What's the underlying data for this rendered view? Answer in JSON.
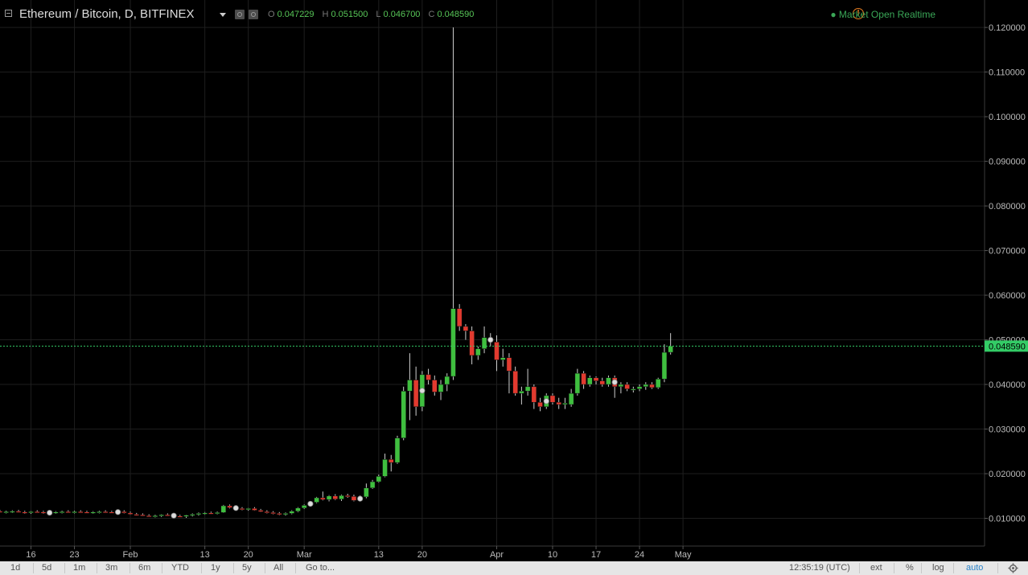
{
  "header": {
    "symbol": "Ethereum / Bitcoin, D, BITFINEX",
    "open_label": "O",
    "open": "0.047229",
    "high_label": "H",
    "high": "0.051500",
    "low_label": "L",
    "low": "0.046700",
    "close_label": "C",
    "close": "0.048590",
    "market_status": "Market Open",
    "realtime": "Realtime"
  },
  "timeframes": [
    "1d",
    "5d",
    "1m",
    "3m",
    "6m",
    "YTD",
    "1y",
    "5y",
    "All"
  ],
  "goto": "Go to...",
  "clock": "12:35:19 (UTC)",
  "options": [
    "ext",
    "%",
    "log",
    "auto"
  ],
  "colors": {
    "up": "#3fbf3f",
    "down": "#e23a2f",
    "grid": "#1e1e1e",
    "last_price": "#33cc66"
  },
  "chart_data": {
    "type": "candlestick",
    "x_tick_labels": [
      "16",
      "23",
      "Feb",
      "13",
      "20",
      "Mar",
      "13",
      "20",
      "Apr",
      "10",
      "17",
      "24",
      "May"
    ],
    "y_tick_labels": [
      "0.120000",
      "0.110000",
      "0.100000",
      "0.090000",
      "0.080000",
      "0.070000",
      "0.060000",
      "0.050000",
      "0.040000",
      "0.030000",
      "0.020000",
      "0.010000"
    ],
    "y_ticks": [
      0.12,
      0.11,
      0.1,
      0.09,
      0.08,
      0.07,
      0.06,
      0.05,
      0.04,
      0.03,
      0.02,
      0.01
    ],
    "ylim": [
      0.0,
      0.12
    ],
    "last_price": 0.04859,
    "last_price_label": "0.048590",
    "candles": [
      {
        "date": "2017-01-10",
        "o": 0.0115,
        "h": 0.0118,
        "l": 0.0112,
        "c": 0.0116
      },
      {
        "date": "2017-01-11",
        "o": 0.0116,
        "h": 0.0119,
        "l": 0.0113,
        "c": 0.0114
      },
      {
        "date": "2017-01-12",
        "o": 0.0114,
        "h": 0.0117,
        "l": 0.0111,
        "c": 0.0115
      },
      {
        "date": "2017-01-13",
        "o": 0.0115,
        "h": 0.0118,
        "l": 0.0112,
        "c": 0.0116
      },
      {
        "date": "2017-01-14",
        "o": 0.0116,
        "h": 0.0119,
        "l": 0.0113,
        "c": 0.0114
      },
      {
        "date": "2017-01-15",
        "o": 0.0114,
        "h": 0.0117,
        "l": 0.011,
        "c": 0.0113
      },
      {
        "date": "2017-01-16",
        "o": 0.0113,
        "h": 0.0116,
        "l": 0.011,
        "c": 0.0115
      },
      {
        "date": "2017-01-17",
        "o": 0.0115,
        "h": 0.0118,
        "l": 0.0112,
        "c": 0.0114
      },
      {
        "date": "2017-01-18",
        "o": 0.0114,
        "h": 0.0117,
        "l": 0.011,
        "c": 0.0112
      },
      {
        "date": "2017-01-19",
        "o": 0.0112,
        "h": 0.0115,
        "l": 0.0109,
        "c": 0.0113
      },
      {
        "date": "2017-01-20",
        "o": 0.0113,
        "h": 0.0116,
        "l": 0.011,
        "c": 0.0114
      },
      {
        "date": "2017-01-21",
        "o": 0.0114,
        "h": 0.0117,
        "l": 0.0111,
        "c": 0.0115
      },
      {
        "date": "2017-01-22",
        "o": 0.0115,
        "h": 0.0118,
        "l": 0.0112,
        "c": 0.0114
      },
      {
        "date": "2017-01-23",
        "o": 0.0114,
        "h": 0.0117,
        "l": 0.0111,
        "c": 0.0115
      },
      {
        "date": "2017-01-24",
        "o": 0.0115,
        "h": 0.0118,
        "l": 0.0112,
        "c": 0.0114
      },
      {
        "date": "2017-01-25",
        "o": 0.0114,
        "h": 0.0117,
        "l": 0.0111,
        "c": 0.0113
      },
      {
        "date": "2017-01-26",
        "o": 0.0113,
        "h": 0.0116,
        "l": 0.011,
        "c": 0.0114
      },
      {
        "date": "2017-01-27",
        "o": 0.0114,
        "h": 0.0117,
        "l": 0.0111,
        "c": 0.0115
      },
      {
        "date": "2017-01-28",
        "o": 0.0115,
        "h": 0.0118,
        "l": 0.0112,
        "c": 0.0114
      },
      {
        "date": "2017-01-29",
        "o": 0.0114,
        "h": 0.0117,
        "l": 0.0111,
        "c": 0.0113
      },
      {
        "date": "2017-01-30",
        "o": 0.0113,
        "h": 0.0116,
        "l": 0.011,
        "c": 0.0115
      },
      {
        "date": "2017-01-31",
        "o": 0.0115,
        "h": 0.0118,
        "l": 0.0111,
        "c": 0.0112
      },
      {
        "date": "2017-02-01",
        "o": 0.0112,
        "h": 0.0115,
        "l": 0.0108,
        "c": 0.0109
      },
      {
        "date": "2017-02-02",
        "o": 0.0109,
        "h": 0.0112,
        "l": 0.0106,
        "c": 0.0108
      },
      {
        "date": "2017-02-03",
        "o": 0.0108,
        "h": 0.0111,
        "l": 0.0105,
        "c": 0.0106
      },
      {
        "date": "2017-02-04",
        "o": 0.0106,
        "h": 0.0109,
        "l": 0.0103,
        "c": 0.0105
      },
      {
        "date": "2017-02-05",
        "o": 0.0105,
        "h": 0.0108,
        "l": 0.0102,
        "c": 0.0106
      },
      {
        "date": "2017-02-06",
        "o": 0.0106,
        "h": 0.0109,
        "l": 0.0103,
        "c": 0.0108
      },
      {
        "date": "2017-02-07",
        "o": 0.0108,
        "h": 0.0111,
        "l": 0.0105,
        "c": 0.0107
      },
      {
        "date": "2017-02-08",
        "o": 0.0107,
        "h": 0.011,
        "l": 0.0104,
        "c": 0.0105
      },
      {
        "date": "2017-02-09",
        "o": 0.0105,
        "h": 0.0108,
        "l": 0.0102,
        "c": 0.0104
      },
      {
        "date": "2017-02-10",
        "o": 0.0104,
        "h": 0.0108,
        "l": 0.0101,
        "c": 0.0107
      },
      {
        "date": "2017-02-11",
        "o": 0.0107,
        "h": 0.0111,
        "l": 0.0104,
        "c": 0.0109
      },
      {
        "date": "2017-02-12",
        "o": 0.0109,
        "h": 0.0113,
        "l": 0.0106,
        "c": 0.0111
      },
      {
        "date": "2017-02-13",
        "o": 0.0111,
        "h": 0.0114,
        "l": 0.0108,
        "c": 0.0112
      },
      {
        "date": "2017-02-14",
        "o": 0.0112,
        "h": 0.0115,
        "l": 0.0109,
        "c": 0.0111
      },
      {
        "date": "2017-02-15",
        "o": 0.0111,
        "h": 0.0115,
        "l": 0.0109,
        "c": 0.0113
      },
      {
        "date": "2017-02-16",
        "o": 0.0113,
        "h": 0.013,
        "l": 0.0112,
        "c": 0.0128
      },
      {
        "date": "2017-02-17",
        "o": 0.0128,
        "h": 0.0131,
        "l": 0.0122,
        "c": 0.0124
      },
      {
        "date": "2017-02-18",
        "o": 0.0124,
        "h": 0.0127,
        "l": 0.012,
        "c": 0.0122
      },
      {
        "date": "2017-02-19",
        "o": 0.0122,
        "h": 0.0125,
        "l": 0.0118,
        "c": 0.012
      },
      {
        "date": "2017-02-20",
        "o": 0.012,
        "h": 0.0123,
        "l": 0.0117,
        "c": 0.0122
      },
      {
        "date": "2017-02-21",
        "o": 0.0122,
        "h": 0.0125,
        "l": 0.0117,
        "c": 0.0118
      },
      {
        "date": "2017-02-22",
        "o": 0.0118,
        "h": 0.0121,
        "l": 0.0114,
        "c": 0.0115
      },
      {
        "date": "2017-02-23",
        "o": 0.0115,
        "h": 0.0118,
        "l": 0.0111,
        "c": 0.0113
      },
      {
        "date": "2017-02-24",
        "o": 0.0113,
        "h": 0.0116,
        "l": 0.0109,
        "c": 0.0111
      },
      {
        "date": "2017-02-25",
        "o": 0.0111,
        "h": 0.0114,
        "l": 0.0107,
        "c": 0.0109
      },
      {
        "date": "2017-02-26",
        "o": 0.0109,
        "h": 0.0113,
        "l": 0.0106,
        "c": 0.0111
      },
      {
        "date": "2017-02-27",
        "o": 0.0111,
        "h": 0.0118,
        "l": 0.0109,
        "c": 0.0116
      },
      {
        "date": "2017-02-28",
        "o": 0.0116,
        "h": 0.0125,
        "l": 0.0114,
        "c": 0.0123
      },
      {
        "date": "2017-03-01",
        "o": 0.0123,
        "h": 0.0131,
        "l": 0.0121,
        "c": 0.0129
      },
      {
        "date": "2017-03-02",
        "o": 0.0129,
        "h": 0.0138,
        "l": 0.0127,
        "c": 0.0136
      },
      {
        "date": "2017-03-03",
        "o": 0.0136,
        "h": 0.0148,
        "l": 0.0134,
        "c": 0.0146
      },
      {
        "date": "2017-03-04",
        "o": 0.0146,
        "h": 0.016,
        "l": 0.014,
        "c": 0.0142
      },
      {
        "date": "2017-03-05",
        "o": 0.0142,
        "h": 0.0152,
        "l": 0.0138,
        "c": 0.015
      },
      {
        "date": "2017-03-06",
        "o": 0.015,
        "h": 0.0154,
        "l": 0.0141,
        "c": 0.0143
      },
      {
        "date": "2017-03-07",
        "o": 0.0143,
        "h": 0.0153,
        "l": 0.0139,
        "c": 0.0151
      },
      {
        "date": "2017-03-08",
        "o": 0.0151,
        "h": 0.0155,
        "l": 0.0146,
        "c": 0.0149
      },
      {
        "date": "2017-03-09",
        "o": 0.0149,
        "h": 0.0153,
        "l": 0.0138,
        "c": 0.014
      },
      {
        "date": "2017-03-10",
        "o": 0.014,
        "h": 0.0151,
        "l": 0.0138,
        "c": 0.0148
      },
      {
        "date": "2017-03-11",
        "o": 0.0148,
        "h": 0.0178,
        "l": 0.0145,
        "c": 0.0168
      },
      {
        "date": "2017-03-12",
        "o": 0.0168,
        "h": 0.0186,
        "l": 0.0166,
        "c": 0.0182
      },
      {
        "date": "2017-03-13",
        "o": 0.0182,
        "h": 0.0198,
        "l": 0.018,
        "c": 0.0194
      },
      {
        "date": "2017-03-14",
        "o": 0.0194,
        "h": 0.0245,
        "l": 0.0192,
        "c": 0.0232
      },
      {
        "date": "2017-03-15",
        "o": 0.0232,
        "h": 0.0242,
        "l": 0.0205,
        "c": 0.0225
      },
      {
        "date": "2017-03-16",
        "o": 0.0225,
        "h": 0.0285,
        "l": 0.0222,
        "c": 0.028
      },
      {
        "date": "2017-03-17",
        "o": 0.028,
        "h": 0.0395,
        "l": 0.0275,
        "c": 0.0385
      },
      {
        "date": "2017-03-18",
        "o": 0.0385,
        "h": 0.047,
        "l": 0.032,
        "c": 0.041
      },
      {
        "date": "2017-03-19",
        "o": 0.041,
        "h": 0.044,
        "l": 0.033,
        "c": 0.035
      },
      {
        "date": "2017-03-20",
        "o": 0.035,
        "h": 0.043,
        "l": 0.034,
        "c": 0.0422
      },
      {
        "date": "2017-03-21",
        "o": 0.0422,
        "h": 0.0435,
        "l": 0.04,
        "c": 0.041
      },
      {
        "date": "2017-03-22",
        "o": 0.041,
        "h": 0.042,
        "l": 0.0375,
        "c": 0.0383
      },
      {
        "date": "2017-03-23",
        "o": 0.0383,
        "h": 0.041,
        "l": 0.0365,
        "c": 0.04
      },
      {
        "date": "2017-03-24",
        "o": 0.04,
        "h": 0.0425,
        "l": 0.0385,
        "c": 0.0418
      },
      {
        "date": "2017-03-25",
        "o": 0.0418,
        "h": 0.12,
        "l": 0.041,
        "c": 0.057
      },
      {
        "date": "2017-03-26",
        "o": 0.057,
        "h": 0.058,
        "l": 0.052,
        "c": 0.053
      },
      {
        "date": "2017-03-27",
        "o": 0.053,
        "h": 0.0535,
        "l": 0.05,
        "c": 0.052
      },
      {
        "date": "2017-03-28",
        "o": 0.052,
        "h": 0.053,
        "l": 0.0445,
        "c": 0.0465
      },
      {
        "date": "2017-03-29",
        "o": 0.0465,
        "h": 0.0485,
        "l": 0.0455,
        "c": 0.048
      },
      {
        "date": "2017-03-30",
        "o": 0.048,
        "h": 0.053,
        "l": 0.047,
        "c": 0.0505
      },
      {
        "date": "2017-03-31",
        "o": 0.0505,
        "h": 0.0515,
        "l": 0.0485,
        "c": 0.0495
      },
      {
        "date": "2017-04-01",
        "o": 0.0495,
        "h": 0.051,
        "l": 0.043,
        "c": 0.0455
      },
      {
        "date": "2017-04-02",
        "o": 0.0455,
        "h": 0.048,
        "l": 0.044,
        "c": 0.046
      },
      {
        "date": "2017-04-03",
        "o": 0.046,
        "h": 0.047,
        "l": 0.038,
        "c": 0.043
      },
      {
        "date": "2017-04-04",
        "o": 0.043,
        "h": 0.044,
        "l": 0.0375,
        "c": 0.038
      },
      {
        "date": "2017-04-05",
        "o": 0.038,
        "h": 0.0395,
        "l": 0.0355,
        "c": 0.0385
      },
      {
        "date": "2017-04-06",
        "o": 0.0385,
        "h": 0.0435,
        "l": 0.0375,
        "c": 0.0395
      },
      {
        "date": "2017-04-07",
        "o": 0.0395,
        "h": 0.04,
        "l": 0.0345,
        "c": 0.036
      },
      {
        "date": "2017-04-08",
        "o": 0.036,
        "h": 0.037,
        "l": 0.034,
        "c": 0.035
      },
      {
        "date": "2017-04-09",
        "o": 0.035,
        "h": 0.038,
        "l": 0.0345,
        "c": 0.0375
      },
      {
        "date": "2017-04-10",
        "o": 0.0375,
        "h": 0.038,
        "l": 0.0355,
        "c": 0.036
      },
      {
        "date": "2017-04-11",
        "o": 0.036,
        "h": 0.037,
        "l": 0.0345,
        "c": 0.0355
      },
      {
        "date": "2017-04-12",
        "o": 0.0355,
        "h": 0.037,
        "l": 0.0345,
        "c": 0.0358
      },
      {
        "date": "2017-04-13",
        "o": 0.0355,
        "h": 0.039,
        "l": 0.035,
        "c": 0.038
      },
      {
        "date": "2017-04-14",
        "o": 0.038,
        "h": 0.0435,
        "l": 0.0375,
        "c": 0.0425
      },
      {
        "date": "2017-04-15",
        "o": 0.0425,
        "h": 0.043,
        "l": 0.039,
        "c": 0.04
      },
      {
        "date": "2017-04-16",
        "o": 0.04,
        "h": 0.042,
        "l": 0.0395,
        "c": 0.0415
      },
      {
        "date": "2017-04-17",
        "o": 0.0415,
        "h": 0.0418,
        "l": 0.04,
        "c": 0.0408
      },
      {
        "date": "2017-04-18",
        "o": 0.0408,
        "h": 0.0415,
        "l": 0.0395,
        "c": 0.04
      },
      {
        "date": "2017-04-19",
        "o": 0.04,
        "h": 0.042,
        "l": 0.0395,
        "c": 0.0415
      },
      {
        "date": "2017-04-20",
        "o": 0.0415,
        "h": 0.042,
        "l": 0.037,
        "c": 0.0395
      },
      {
        "date": "2017-04-21",
        "o": 0.0395,
        "h": 0.0405,
        "l": 0.038,
        "c": 0.04
      },
      {
        "date": "2017-04-22",
        "o": 0.04,
        "h": 0.0405,
        "l": 0.0385,
        "c": 0.039
      },
      {
        "date": "2017-04-23",
        "o": 0.0388,
        "h": 0.0395,
        "l": 0.0382,
        "c": 0.039
      },
      {
        "date": "2017-04-24",
        "o": 0.039,
        "h": 0.04,
        "l": 0.0385,
        "c": 0.0395
      },
      {
        "date": "2017-04-25",
        "o": 0.0395,
        "h": 0.0405,
        "l": 0.0388,
        "c": 0.04
      },
      {
        "date": "2017-04-26",
        "o": 0.04,
        "h": 0.0405,
        "l": 0.039,
        "c": 0.0393
      },
      {
        "date": "2017-04-27",
        "o": 0.0393,
        "h": 0.0415,
        "l": 0.039,
        "c": 0.0412
      },
      {
        "date": "2017-04-28",
        "o": 0.0412,
        "h": 0.049,
        "l": 0.0405,
        "c": 0.0472
      },
      {
        "date": "2017-04-29",
        "o": 0.0472,
        "h": 0.0515,
        "l": 0.0467,
        "c": 0.04859
      }
    ]
  }
}
